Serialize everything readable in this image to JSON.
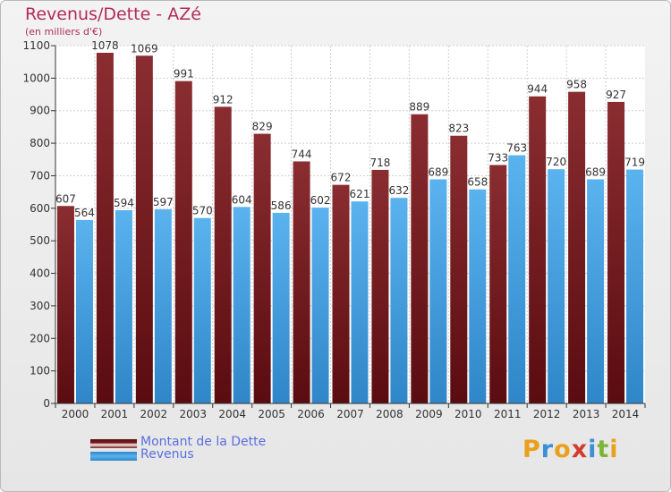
{
  "chart_data": {
    "type": "bar",
    "title": "Revenus/Dette - AZé",
    "subtitle": "(en milliers d'€)",
    "categories": [
      "2000",
      "2001",
      "2002",
      "2003",
      "2004",
      "2005",
      "2006",
      "2007",
      "2008",
      "2009",
      "2010",
      "2011",
      "2012",
      "2013",
      "2014"
    ],
    "series": [
      {
        "name": "Montant de la Dette",
        "color": "#7a1a1d",
        "values": [
          607,
          1078,
          1069,
          991,
          912,
          829,
          744,
          672,
          718,
          889,
          823,
          733,
          944,
          958,
          927
        ]
      },
      {
        "name": "Revenus",
        "color": "#4aa6e4",
        "values": [
          564,
          594,
          597,
          570,
          604,
          586,
          602,
          621,
          632,
          689,
          658,
          763,
          720,
          689,
          719
        ]
      }
    ],
    "ylim": [
      0,
      1100
    ],
    "yticks": [
      0,
      100,
      200,
      300,
      400,
      500,
      600,
      700,
      800,
      900,
      1000,
      1100
    ],
    "grid": true,
    "legend_position": "bottom-left"
  },
  "brand": {
    "letters": [
      "P",
      "r",
      "o",
      "x",
      "i",
      "t",
      "i"
    ],
    "colors": [
      "#e9a11b",
      "#3a8fd6",
      "#e9a11b",
      "#d23b2d",
      "#3a8fd6",
      "#7cb53a",
      "#e9a11b"
    ]
  }
}
